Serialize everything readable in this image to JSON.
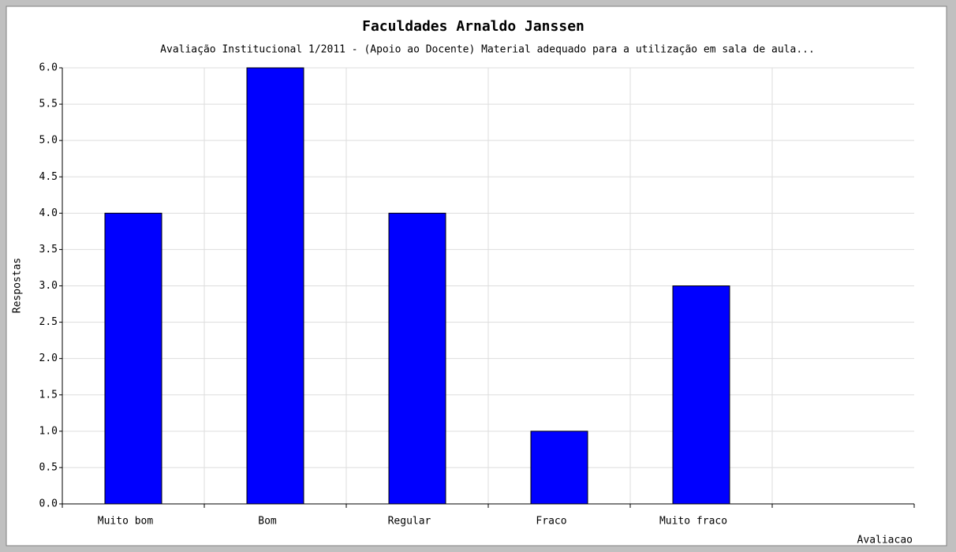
{
  "chart_data": {
    "type": "bar",
    "title": "Faculdades Arnaldo Janssen",
    "subtitle": "Avaliação Institucional 1/2011 - (Apoio ao Docente) Material adequado para a utilização em sala de aula...",
    "x_label": "Avaliacao",
    "y_label": "Respostas",
    "categories": [
      "Muito bom",
      "Bom",
      "Regular",
      "Fraco",
      "Muito fraco",
      null
    ],
    "values": [
      4,
      6,
      4,
      1,
      3,
      null
    ],
    "color": "#0000ff",
    "ylim": [
      0,
      6
    ],
    "yticks": [
      {
        "value": 0,
        "label": "0.0"
      },
      0.5,
      {
        "value": 1,
        "label": "1.0"
      },
      1.5,
      {
        "value": 2,
        "label": "2.0"
      },
      2.5,
      {
        "value": 3,
        "label": "3.0"
      },
      3.5,
      {
        "value": 4,
        "label": "4.0"
      },
      4.5,
      {
        "value": 5,
        "label": "5.0"
      },
      5.5,
      {
        "value": 6,
        "label": "6.0"
      }
    ],
    "grid": true
  }
}
